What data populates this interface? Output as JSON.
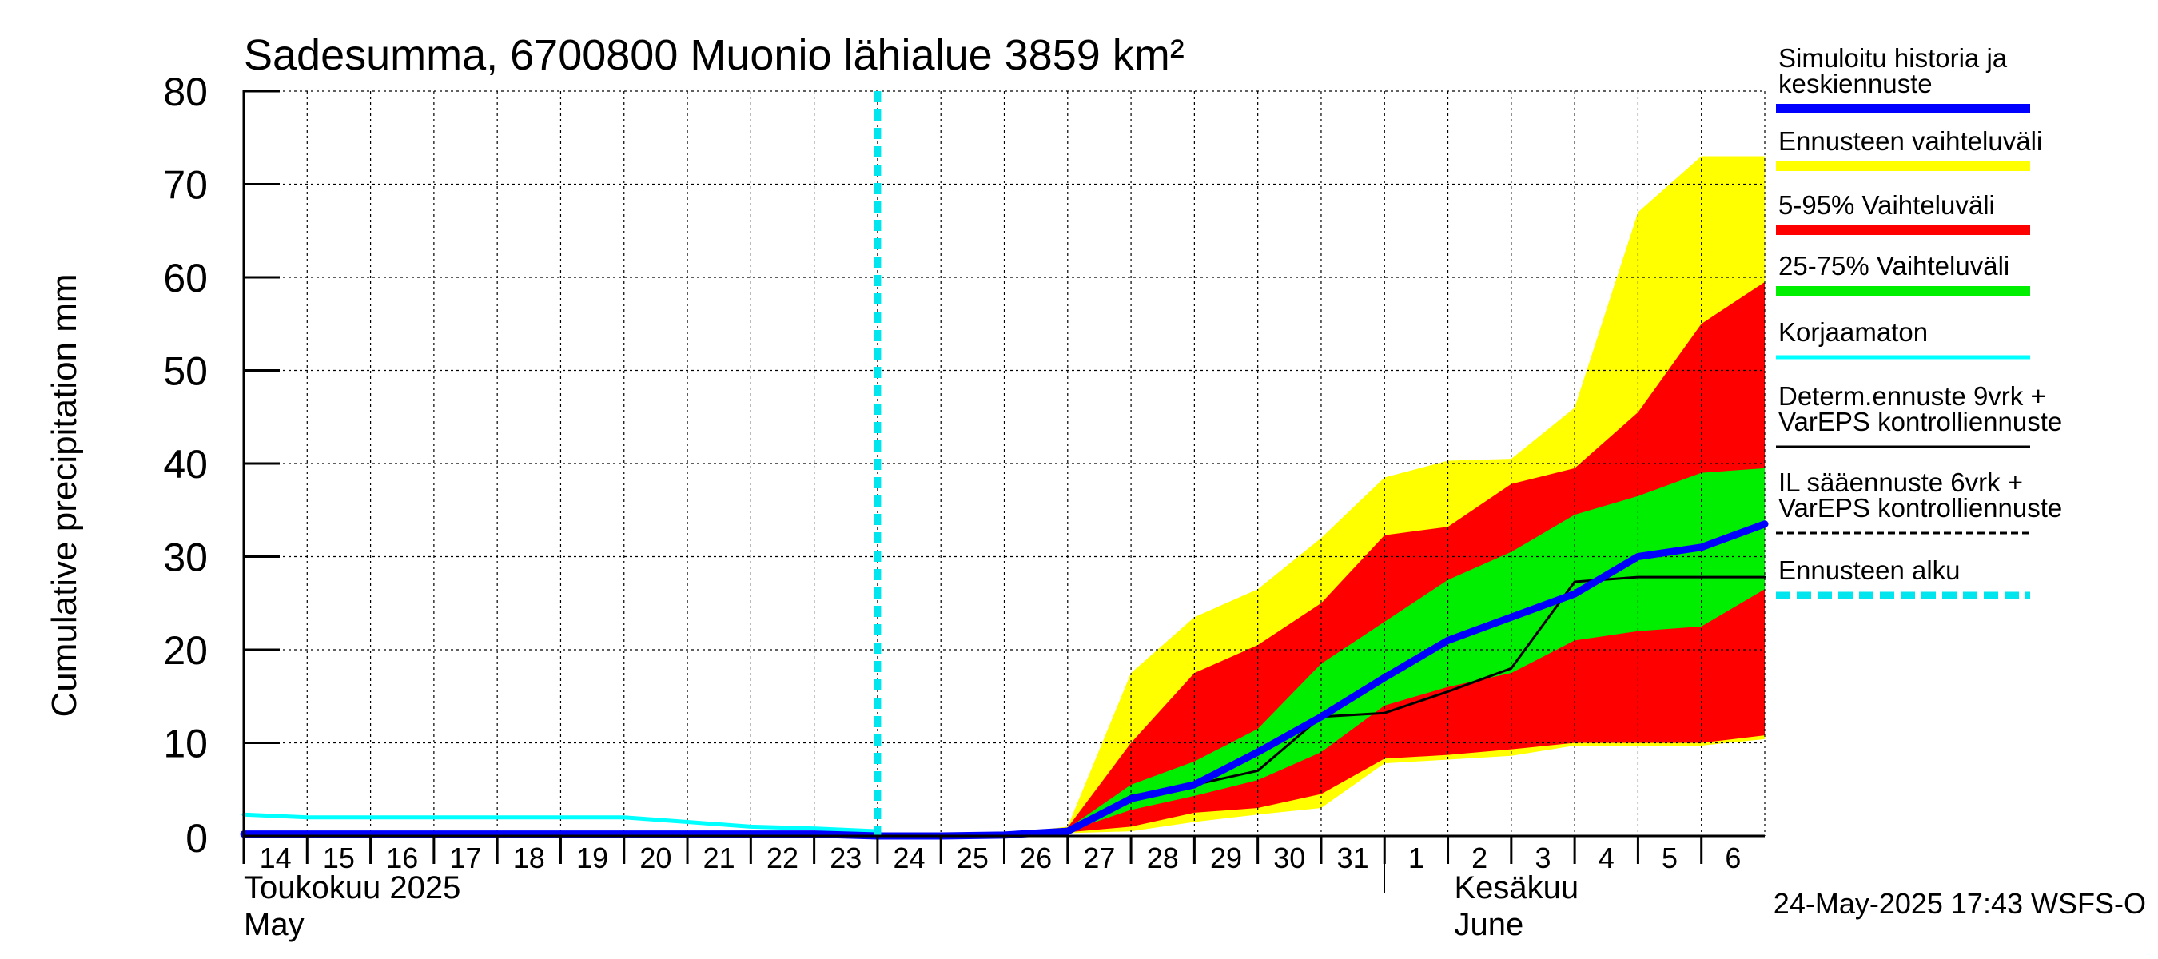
{
  "chart_data": {
    "type": "area",
    "title": "Sadesumma, 6700800 Muonio lähialue 3859 km²",
    "ylabel": "Cumulative precipitation   mm",
    "ylim": [
      0,
      80
    ],
    "yticks": [
      "0",
      "10",
      "20",
      "30",
      "40",
      "50",
      "60",
      "70",
      "80"
    ],
    "xlim": [
      0,
      24
    ],
    "x_tick_labels": [
      "14",
      "15",
      "16",
      "17",
      "18",
      "19",
      "20",
      "21",
      "22",
      "23",
      "24",
      "25",
      "26",
      "27",
      "28",
      "29",
      "30",
      "31",
      "1",
      "2",
      "3",
      "4",
      "5",
      "6"
    ],
    "month_labels": {
      "may_fi": "Toukokuu  2025",
      "may_en": "May",
      "june_fi": "Kesäkuu",
      "june_en": "June"
    },
    "forecast_start_x": 10,
    "grid": true,
    "legend_position": "right",
    "timestamp": "24-May-2025 17:43 WSFS-O",
    "series": [
      {
        "name": "Ennusteen vaihteluväli",
        "kind": "band",
        "color": "#ffff00",
        "x": [
          10,
          11,
          12,
          13,
          14,
          15,
          16,
          17,
          18,
          19,
          20,
          21,
          22,
          23,
          24
        ],
        "lower": [
          0,
          0,
          0,
          0.3,
          0.5,
          1.5,
          2.3,
          3.0,
          7.8,
          8.2,
          8.6,
          9.7,
          9.7,
          9.7,
          10.4
        ],
        "upper": [
          0,
          0,
          0.2,
          1.0,
          17.5,
          23.5,
          26.5,
          32.0,
          38.5,
          40.3,
          40.5,
          46.0,
          67.0,
          73.0,
          73.0
        ]
      },
      {
        "name": "5-95% Vaihteluväli",
        "kind": "band",
        "color": "#ff0000",
        "x": [
          10,
          11,
          12,
          13,
          14,
          15,
          16,
          17,
          18,
          19,
          20,
          21,
          22,
          23,
          24
        ],
        "lower": [
          0,
          0,
          0,
          0.4,
          1.0,
          2.5,
          3.0,
          4.5,
          8.3,
          8.7,
          9.3,
          10.0,
          10.0,
          10.0,
          10.8
        ],
        "upper": [
          0,
          0,
          0.1,
          0.9,
          10.0,
          17.5,
          20.5,
          25.0,
          32.3,
          33.2,
          37.8,
          39.5,
          45.5,
          55.0,
          59.5
        ]
      },
      {
        "name": "25-75% Vaihteluväli",
        "kind": "band",
        "color": "#00ee00",
        "x": [
          10,
          11,
          12,
          13,
          14,
          15,
          16,
          17,
          18,
          19,
          20,
          21,
          22,
          23,
          24
        ],
        "lower": [
          0,
          0,
          0,
          0.5,
          2.8,
          4.3,
          6.0,
          9.0,
          14.0,
          16.0,
          17.5,
          21.0,
          22.0,
          22.5,
          26.5
        ],
        "upper": [
          0,
          0,
          0.1,
          0.8,
          5.5,
          8.0,
          11.5,
          18.5,
          23.0,
          27.5,
          30.5,
          34.5,
          36.5,
          39.0,
          39.5
        ]
      },
      {
        "name": "Korjaamaton",
        "kind": "line",
        "color": "#00ffff",
        "x": [
          0,
          1,
          2,
          3,
          4,
          5,
          6,
          7,
          8,
          9,
          10
        ],
        "y": [
          2.3,
          2.0,
          2.0,
          2.0,
          2.0,
          2.0,
          2.0,
          1.5,
          1.0,
          0.8,
          0.5
        ]
      },
      {
        "name": "Determ.ennuste 9vrk + VarEPS kontrolliennuste",
        "kind": "line",
        "color": "#000000",
        "x": [
          10,
          11,
          12,
          13,
          14,
          15,
          16,
          17,
          18,
          19,
          20,
          21,
          22,
          23,
          24
        ],
        "y": [
          0,
          0,
          0.1,
          0.5,
          4.3,
          5.5,
          7.0,
          12.8,
          13.2,
          15.5,
          18.0,
          27.3,
          27.8,
          27.8,
          27.8
        ]
      },
      {
        "name": "Simuloitu historia ja keskiennuste",
        "kind": "line",
        "color": "#0000ff",
        "x": [
          0,
          1,
          2,
          3,
          4,
          5,
          6,
          7,
          8,
          9,
          10,
          11,
          12,
          13,
          14,
          15,
          16,
          17,
          18,
          19,
          20,
          21,
          22,
          23,
          24
        ],
        "y": [
          0.2,
          0.2,
          0.2,
          0.2,
          0.2,
          0.2,
          0.2,
          0.2,
          0.2,
          0.2,
          0,
          0,
          0.1,
          0.5,
          4.0,
          5.5,
          9.0,
          12.8,
          17.0,
          21.0,
          23.5,
          26.0,
          30.0,
          31.0,
          33.5
        ]
      }
    ],
    "legend": [
      {
        "label": "Simuloitu historia ja\nkeskiennuste",
        "color": "#0000ff",
        "style": "thick"
      },
      {
        "label": "Ennusteen vaihteluväli",
        "color": "#ffff00",
        "style": "thick"
      },
      {
        "label": "5-95% Vaihteluväli",
        "color": "#ff0000",
        "style": "thick"
      },
      {
        "label": "25-75% Vaihteluväli",
        "color": "#00ee00",
        "style": "thick"
      },
      {
        "label": "Korjaamaton",
        "color": "#00ffff",
        "style": "medium"
      },
      {
        "label": "Determ.ennuste 9vrk  +\nVarEPS kontrolliennuste",
        "color": "#000000",
        "style": "thin"
      },
      {
        "label": "IL sääennuste 6vrk  +\n  VarEPS kontrolliennuste",
        "color": "#000000",
        "style": "dashed"
      },
      {
        "label": "Ennusteen alku",
        "color": "#00e5ee",
        "style": "thick-dashed"
      }
    ]
  }
}
